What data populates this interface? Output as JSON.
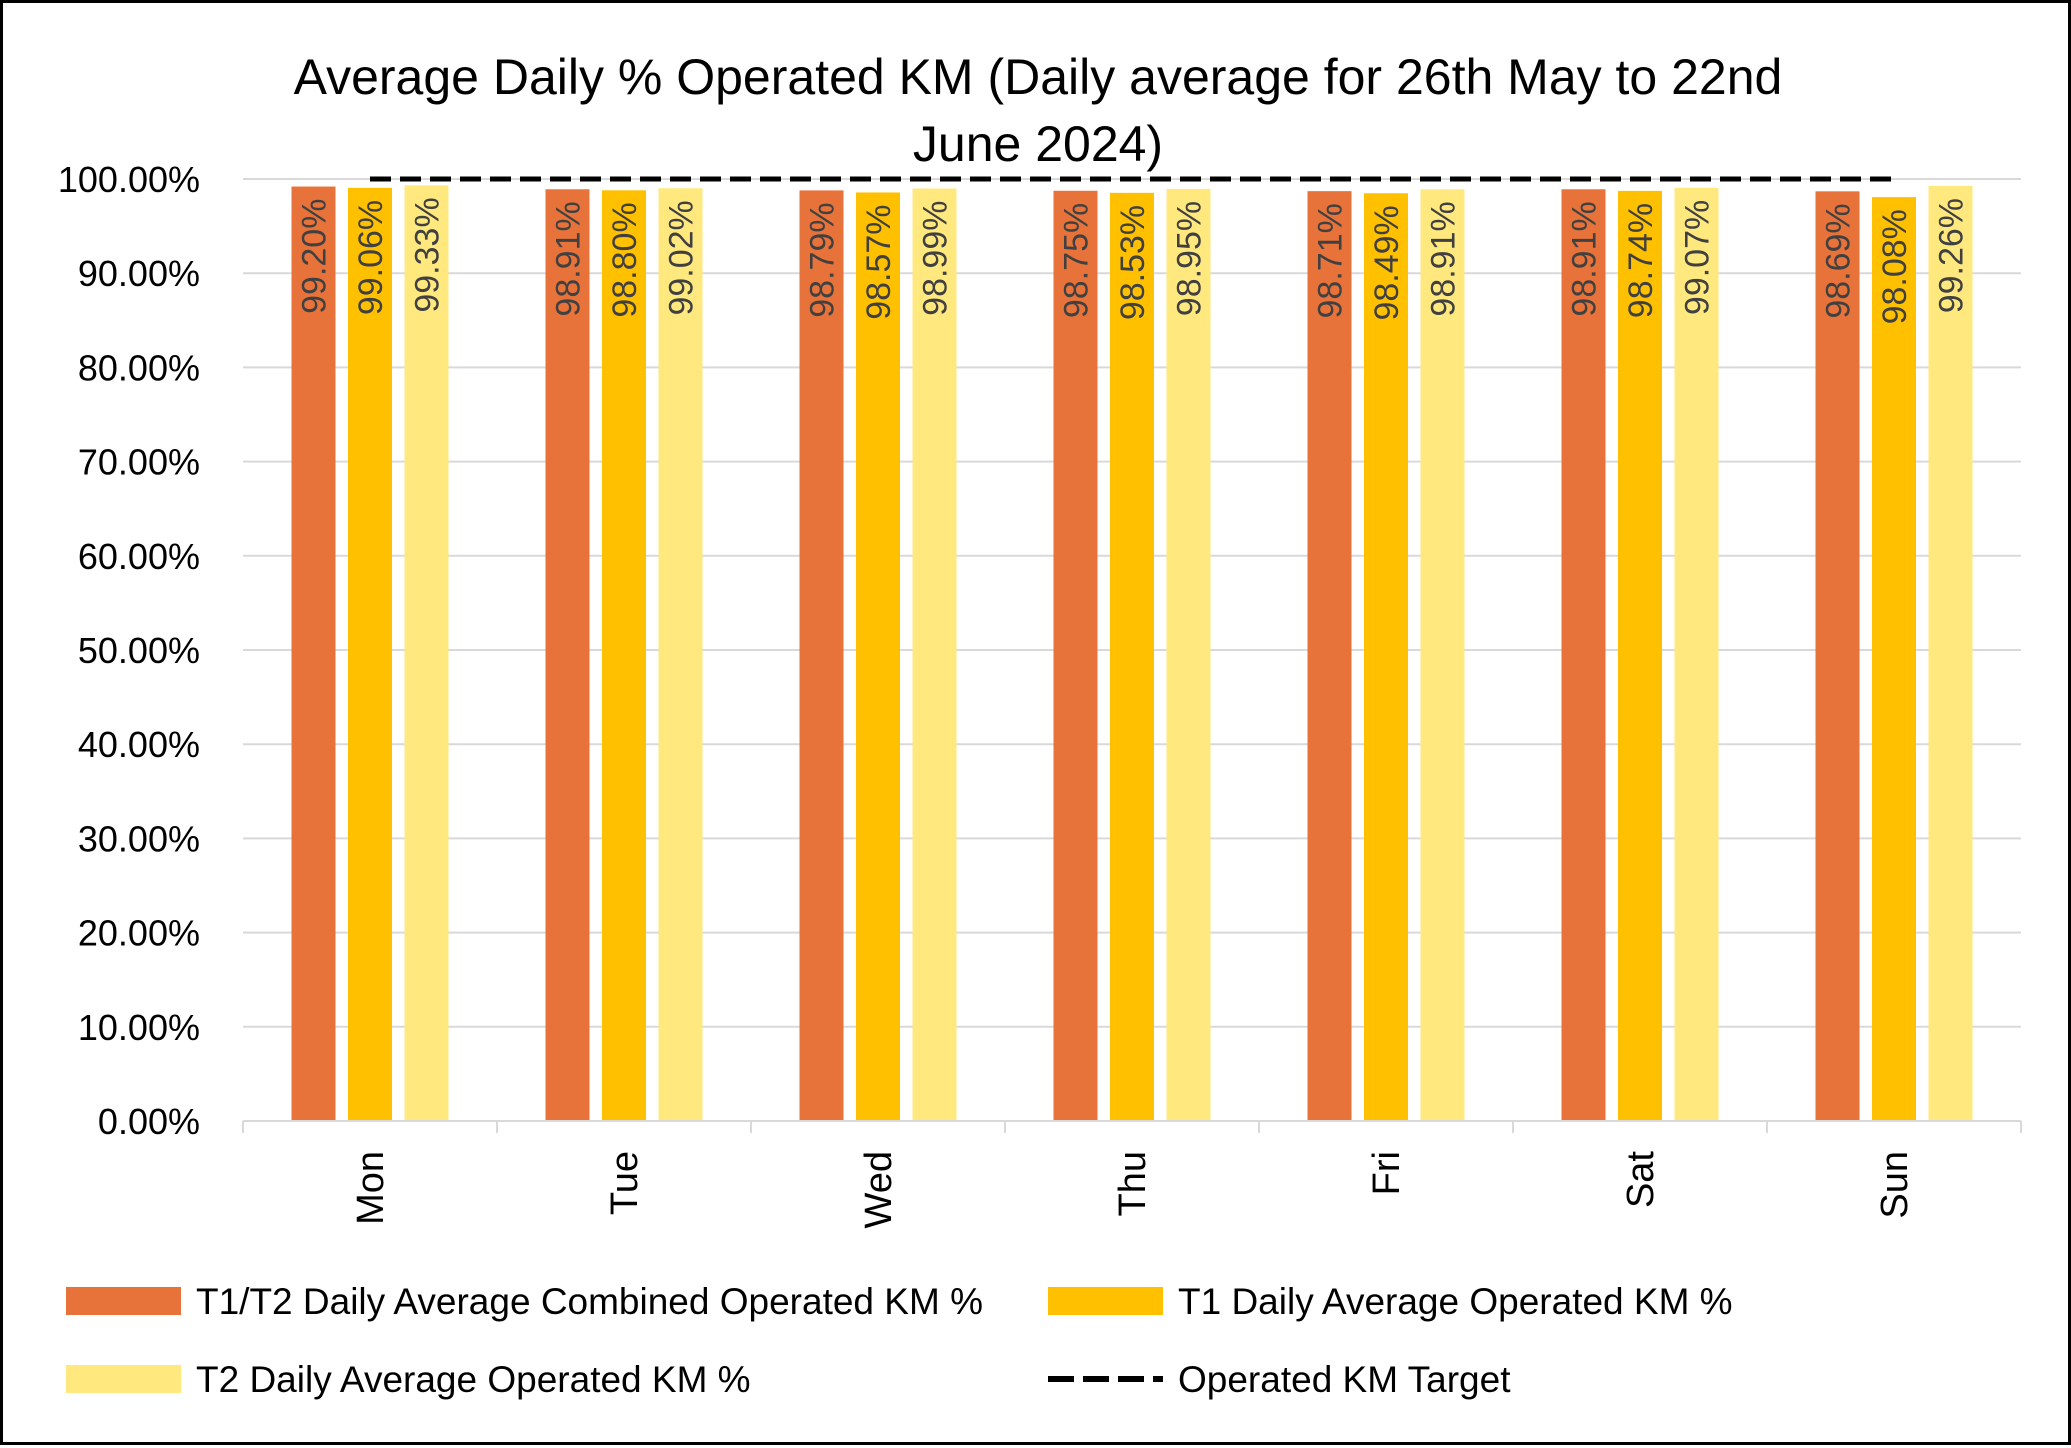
{
  "chart_data": {
    "type": "bar",
    "title_lines": [
      "Average Daily % Operated KM (Daily average for 26th May to 22nd",
      "June 2024)"
    ],
    "xlabel": "",
    "ylabel": "",
    "ylim": [
      0,
      100
    ],
    "y_ticks": [
      "0.00%",
      "10.00%",
      "20.00%",
      "30.00%",
      "40.00%",
      "50.00%",
      "60.00%",
      "70.00%",
      "80.00%",
      "90.00%",
      "100.00%"
    ],
    "y_tick_values": [
      0,
      10,
      20,
      30,
      40,
      50,
      60,
      70,
      80,
      90,
      100
    ],
    "grid": true,
    "legend_position": "bottom",
    "categories": [
      "Mon",
      "Tue",
      "Wed",
      "Thu",
      "Fri",
      "Sat",
      "Sun"
    ],
    "series": [
      {
        "name": "T1/T2 Daily Average Combined Operated KM %",
        "color": "#E8733A",
        "values": [
          99.2,
          98.91,
          98.79,
          98.75,
          98.71,
          98.91,
          98.69
        ],
        "labels": [
          "99.20%",
          "98.91%",
          "98.79%",
          "98.75%",
          "98.71%",
          "98.91%",
          "98.69%"
        ]
      },
      {
        "name": "T1 Daily Average Operated KM %",
        "color": "#FFC000",
        "values": [
          99.06,
          98.8,
          98.57,
          98.53,
          98.49,
          98.74,
          98.08
        ],
        "labels": [
          "99.06%",
          "98.80%",
          "98.57%",
          "98.53%",
          "98.49%",
          "98.74%",
          "98.08%"
        ]
      },
      {
        "name": "T2 Daily Average Operated KM %",
        "color": "#FFE97F",
        "values": [
          99.33,
          99.02,
          98.99,
          98.95,
          98.91,
          99.07,
          99.26
        ],
        "labels": [
          "99.33%",
          "99.02%",
          "98.99%",
          "98.95%",
          "98.91%",
          "99.07%",
          "99.26%"
        ]
      }
    ],
    "target_line": {
      "name": "Operated KM Target",
      "value": 100,
      "color": "#000000",
      "style": "dashed"
    }
  }
}
